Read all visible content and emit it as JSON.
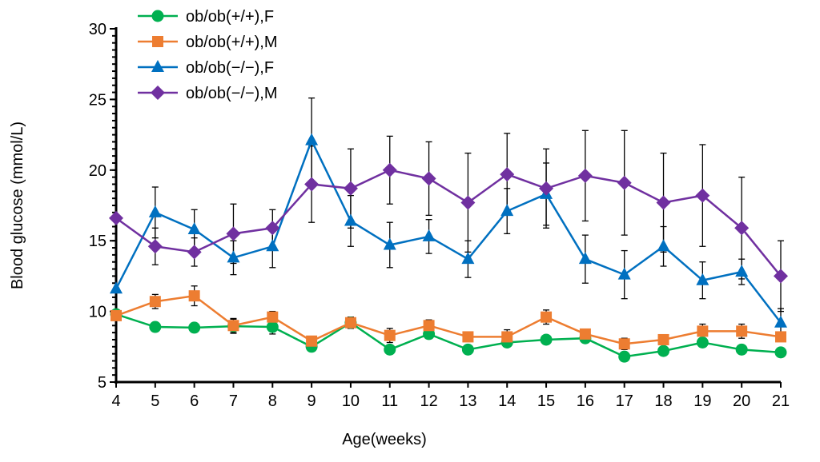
{
  "chart_data": {
    "type": "line",
    "xlabel": "Age(weeks)",
    "ylabel": "Blood glucose (mmol/L)",
    "x": [
      4,
      5,
      6,
      7,
      8,
      9,
      10,
      11,
      12,
      13,
      14,
      15,
      16,
      17,
      18,
      19,
      20,
      21
    ],
    "xlim": [
      4,
      21
    ],
    "ylim": [
      5,
      30
    ],
    "yticks": [
      5,
      10,
      15,
      20,
      25,
      30
    ],
    "grid": false,
    "legend": "top-left",
    "series": [
      {
        "name": "ob/ob(+/+),F",
        "color": "#00b050",
        "marker": "circle",
        "values": [
          9.8,
          8.9,
          8.85,
          8.95,
          8.9,
          7.5,
          9.2,
          7.3,
          8.4,
          7.3,
          7.8,
          8.0,
          8.1,
          6.8,
          7.2,
          7.8,
          7.3,
          7.1
        ],
        "error": [
          0.2,
          0.3,
          0.3,
          0.5,
          0.5,
          0.3,
          0.4,
          0.3,
          0.3,
          0.3,
          0.3,
          0.3,
          0.3,
          0.3,
          0.3,
          0.3,
          0.3,
          0.2
        ]
      },
      {
        "name": "ob/ob(+/+),M",
        "color": "#ed7d31",
        "marker": "square",
        "values": [
          9.7,
          10.7,
          11.1,
          9.0,
          9.6,
          7.9,
          9.2,
          8.3,
          9.0,
          8.2,
          8.2,
          9.6,
          8.4,
          7.7,
          8.0,
          8.6,
          8.6,
          8.2
        ],
        "error": [
          0,
          0.5,
          0.7,
          0.5,
          0.4,
          0.3,
          0.4,
          0.5,
          0.4,
          0.3,
          0.5,
          0.5,
          0.3,
          0.4,
          0.3,
          0.5,
          0.5,
          0.3
        ]
      },
      {
        "name": "ob/ob(−/−),F",
        "color": "#0070c0",
        "marker": "triangle",
        "values": [
          11.6,
          17.0,
          15.8,
          13.8,
          14.6,
          22.1,
          16.4,
          14.7,
          15.3,
          13.7,
          17.1,
          18.3,
          13.7,
          12.6,
          14.6,
          12.2,
          12.8,
          9.2
        ],
        "error": [
          0,
          1.8,
          1.4,
          1.2,
          1.5,
          3.0,
          1.8,
          1.6,
          1.2,
          1.3,
          1.6,
          2.2,
          1.7,
          1.7,
          1.4,
          1.3,
          0.9,
          1.0
        ]
      },
      {
        "name": "ob/ob(−/−),M",
        "color": "#7030a0",
        "marker": "diamond",
        "values": [
          16.6,
          14.6,
          14.2,
          15.5,
          15.9,
          19.0,
          18.7,
          20.0,
          19.4,
          17.7,
          19.7,
          18.7,
          19.6,
          19.1,
          17.7,
          18.2,
          15.9,
          12.5
        ],
        "error": [
          0,
          1.3,
          1.0,
          2.1,
          1.3,
          2.7,
          2.8,
          2.4,
          2.6,
          3.5,
          2.9,
          2.8,
          3.2,
          3.7,
          3.5,
          3.6,
          3.6,
          2.5
        ]
      }
    ]
  }
}
